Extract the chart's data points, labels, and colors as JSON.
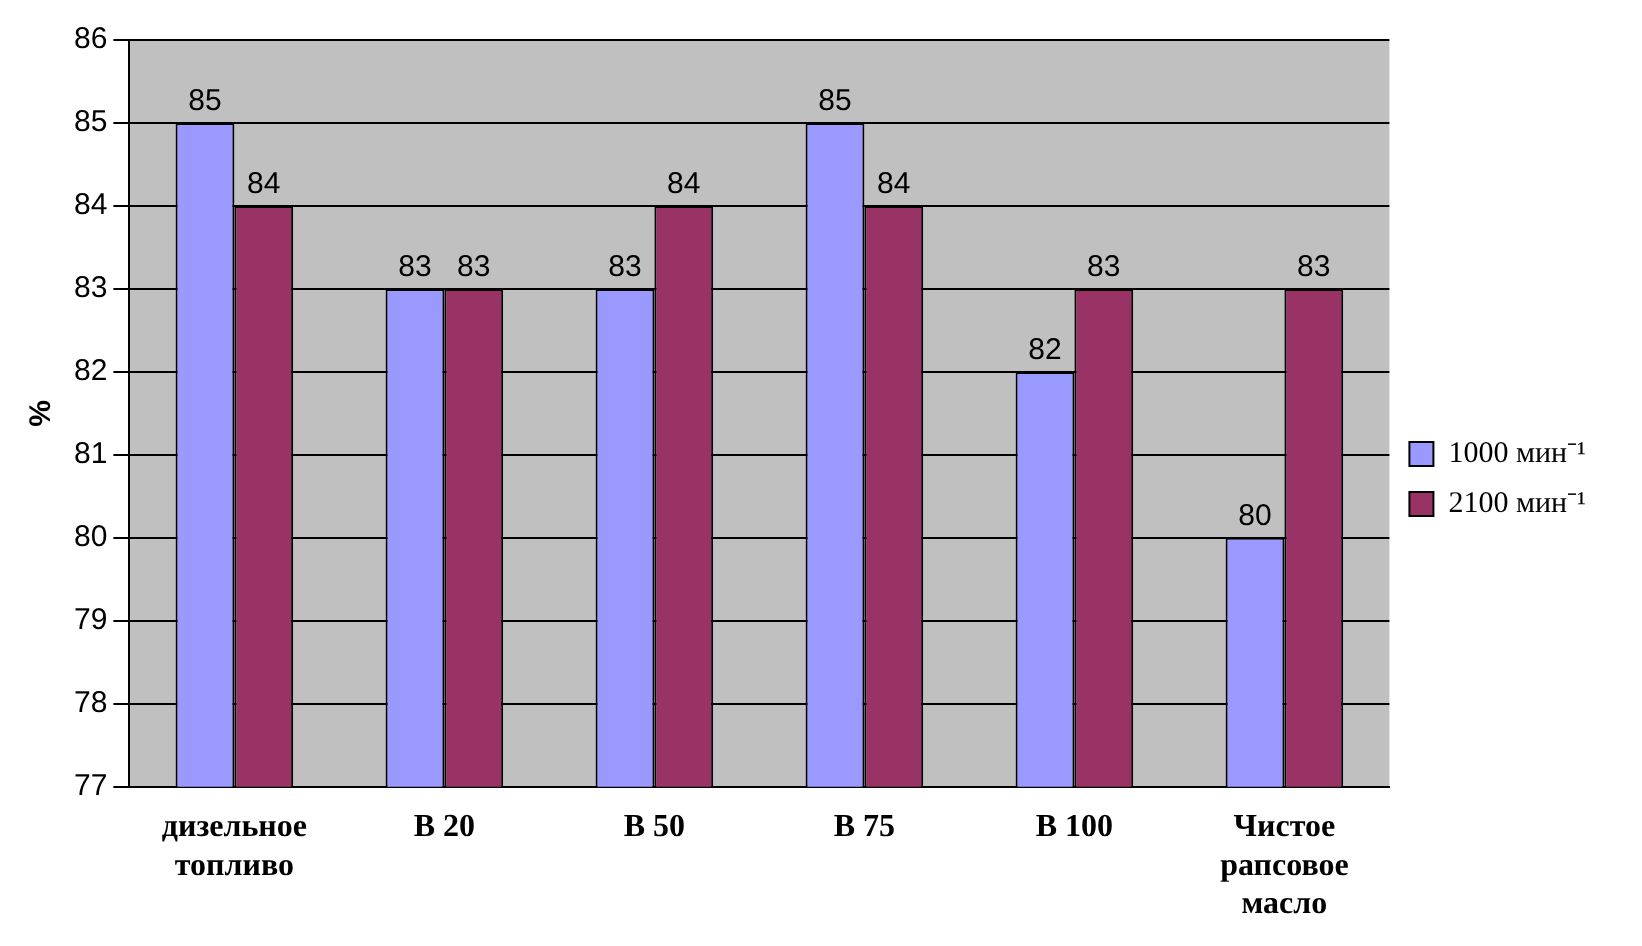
{
  "chart_data": {
    "type": "bar",
    "ylabel": "%",
    "categories": [
      "дизельное топливо",
      "В 20",
      "В 50",
      "В 75",
      "В 100",
      "Чистое рапсовое масло"
    ],
    "series": [
      {
        "name": "1000 мин⁻¹",
        "color": "#9999ff",
        "values": [
          85,
          83,
          83,
          85,
          82,
          80
        ]
      },
      {
        "name": "2100 мин⁻¹",
        "color": "#993366",
        "values": [
          84,
          83,
          84,
          84,
          83,
          83
        ]
      }
    ],
    "ylim": [
      77,
      86
    ],
    "yticks": [
      77,
      78,
      79,
      80,
      81,
      82,
      83,
      84,
      85,
      86
    ],
    "grid": "y",
    "legend": "right",
    "data_labels": true
  }
}
